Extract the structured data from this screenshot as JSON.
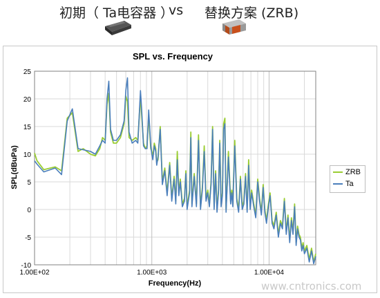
{
  "captions": {
    "initial": "初期（ Ta电容器 ）",
    "vs": "vs",
    "replacement": "替换方案 (ZRB)"
  },
  "watermark": "www.cntronics.com",
  "colors": {
    "zrb": "#9ACD32",
    "ta": "#4A7EBB",
    "grid": "#d9d9d9"
  },
  "chart_data": {
    "type": "line",
    "title": "SPL vs. Frequency",
    "xlabel": "Frequency(Hz)",
    "ylabel": "SPL(dBuPa)",
    "xscale": "log",
    "xlim": [
      100,
      25000
    ],
    "ylim": [
      -10,
      25
    ],
    "x_ticks": [
      {
        "value": 100,
        "label": "1.00E+02"
      },
      {
        "value": 1000,
        "label": "1.00E+03"
      },
      {
        "value": 10000,
        "label": "1.00E+04"
      }
    ],
    "y_ticks": [
      -10,
      -5,
      0,
      5,
      10,
      15,
      20,
      25
    ],
    "grid": true,
    "legend": "right",
    "series": [
      {
        "name": "ZRB",
        "x": [
          100,
          105,
          120,
          150,
          170,
          190,
          210,
          235,
          260,
          300,
          330,
          360,
          380,
          400,
          415,
          430,
          445,
          470,
          500,
          540,
          580,
          600,
          620,
          640,
          680,
          730,
          760,
          800,
          820,
          850,
          880,
          910,
          940,
          980,
          1000,
          1020,
          1050,
          1080,
          1100,
          1130,
          1180,
          1230,
          1290,
          1350,
          1420,
          1480,
          1550,
          1600,
          1650,
          1700,
          1750,
          1820,
          1900,
          1950,
          2000,
          2100,
          2150,
          2200,
          2300,
          2400,
          2500,
          2600,
          2700,
          2800,
          2900,
          3000,
          3100,
          3200,
          3300,
          3400,
          3500,
          3600,
          3700,
          3800,
          3900,
          4000,
          4100,
          4200,
          4300,
          4400,
          4500,
          4700,
          4800,
          4900,
          5100,
          5300,
          5500,
          5700,
          5900,
          6100,
          6300,
          6500,
          6700,
          6900,
          7100,
          7400,
          7700,
          8000,
          8300,
          8600,
          8900,
          9200,
          9500,
          9800,
          10200,
          10600,
          11000,
          11500,
          12000,
          12500,
          13000,
          13500,
          14000,
          14500,
          15000,
          15500,
          16000,
          16500,
          17000,
          17500,
          18000,
          18500,
          19000,
          19500,
          20000,
          21000,
          22000,
          23000,
          24000,
          25000
        ],
        "y": [
          10.2,
          8.8,
          7.2,
          7.7,
          7.0,
          16.5,
          17.5,
          10.5,
          11.0,
          10.0,
          9.7,
          11.0,
          13.0,
          12.5,
          19.0,
          21.0,
          14.0,
          12.0,
          12.0,
          13.0,
          15.5,
          20.5,
          19.5,
          13.0,
          12.5,
          13.0,
          12.5,
          20.5,
          17.0,
          12.0,
          11.0,
          11.5,
          17.0,
          11.0,
          10.5,
          9.5,
          12.0,
          11.0,
          8.5,
          9.0,
          15.0,
          5.0,
          7.5,
          3.0,
          8.5,
          2.0,
          6.0,
          1.5,
          10.5,
          3.0,
          5.5,
          1.0,
          2.0,
          7.0,
          0.5,
          3.5,
          14.0,
          1.0,
          6.5,
          1.0,
          13.5,
          0.5,
          4.0,
          11.5,
          2.0,
          3.5,
          1.0,
          5.0,
          15.0,
          0.5,
          7.0,
          0.0,
          3.5,
          12.5,
          1.0,
          3.0,
          15.5,
          16.5,
          0.0,
          5.0,
          10.5,
          1.5,
          3.5,
          1.0,
          12.5,
          2.0,
          0.0,
          6.0,
          0.5,
          1.5,
          6.5,
          0.0,
          9.0,
          0.5,
          3.5,
          1.0,
          -1.0,
          5.5,
          2.0,
          -0.5,
          4.5,
          0.0,
          -2.0,
          0.5,
          3.0,
          -2.0,
          -3.0,
          -0.5,
          -4.5,
          -2.0,
          -3.0,
          2.0,
          -4.0,
          -1.0,
          -5.5,
          -1.5,
          -4.0,
          1.0,
          -6.0,
          -3.0,
          -4.5,
          -5.0,
          -7.0,
          -6.0,
          -7.5,
          -6.5,
          -9.0,
          -7.0,
          -9.5,
          -8.0
        ]
      },
      {
        "name": "Ta",
        "x": [
          100,
          105,
          120,
          150,
          170,
          190,
          210,
          235,
          260,
          300,
          330,
          360,
          380,
          400,
          415,
          430,
          445,
          470,
          500,
          540,
          580,
          600,
          620,
          640,
          680,
          730,
          760,
          800,
          820,
          850,
          880,
          910,
          940,
          980,
          1000,
          1020,
          1050,
          1080,
          1100,
          1130,
          1180,
          1230,
          1290,
          1350,
          1420,
          1480,
          1550,
          1600,
          1650,
          1700,
          1750,
          1820,
          1900,
          1950,
          2000,
          2100,
          2150,
          2200,
          2300,
          2400,
          2500,
          2600,
          2700,
          2800,
          2900,
          3000,
          3100,
          3200,
          3300,
          3400,
          3500,
          3600,
          3700,
          3800,
          3900,
          4000,
          4100,
          4200,
          4300,
          4400,
          4500,
          4700,
          4800,
          4900,
          5100,
          5300,
          5500,
          5700,
          5900,
          6100,
          6300,
          6500,
          6700,
          6900,
          7100,
          7400,
          7700,
          8000,
          8300,
          8600,
          8900,
          9200,
          9500,
          9800,
          10200,
          10600,
          11000,
          11500,
          12000,
          12500,
          13000,
          13500,
          14000,
          14500,
          15000,
          15500,
          16000,
          16500,
          17000,
          17500,
          18000,
          18500,
          19000,
          19500,
          20000,
          21000,
          22000,
          23000,
          24000,
          25000
        ],
        "y": [
          8.8,
          8.2,
          6.8,
          7.5,
          6.3,
          16.0,
          18.2,
          11.0,
          10.8,
          10.5,
          10.0,
          11.5,
          12.5,
          12.0,
          20.0,
          23.2,
          14.5,
          12.5,
          12.5,
          13.5,
          16.0,
          21.5,
          23.8,
          14.0,
          12.0,
          12.5,
          12.0,
          21.5,
          18.0,
          11.5,
          11.0,
          11.0,
          18.0,
          11.5,
          10.0,
          9.0,
          11.5,
          10.5,
          8.0,
          9.5,
          14.5,
          4.5,
          7.0,
          2.5,
          8.0,
          1.5,
          5.5,
          1.0,
          9.0,
          2.5,
          5.0,
          0.5,
          1.5,
          6.5,
          0.0,
          3.0,
          13.0,
          0.5,
          6.0,
          0.5,
          12.5,
          0.0,
          3.5,
          10.5,
          1.5,
          3.0,
          0.5,
          4.5,
          14.5,
          0.0,
          6.5,
          -0.5,
          3.0,
          12.0,
          0.5,
          2.5,
          14.5,
          15.5,
          -0.5,
          4.5,
          9.5,
          1.0,
          3.0,
          0.5,
          11.5,
          1.5,
          -0.5,
          5.5,
          0.0,
          1.0,
          6.0,
          -0.5,
          8.0,
          0.0,
          3.0,
          0.5,
          -1.5,
          5.0,
          1.5,
          -1.0,
          4.0,
          -0.5,
          -2.5,
          0.0,
          2.5,
          -2.5,
          -3.5,
          -1.0,
          -5.0,
          -2.5,
          -3.5,
          1.5,
          -4.5,
          -1.5,
          -6.0,
          -2.0,
          -4.5,
          0.5,
          -6.5,
          -3.5,
          -5.0,
          -5.5,
          -7.5,
          -6.5,
          -8.0,
          -7.0,
          -9.5,
          -7.5,
          -9.8,
          -8.5
        ]
      }
    ]
  }
}
